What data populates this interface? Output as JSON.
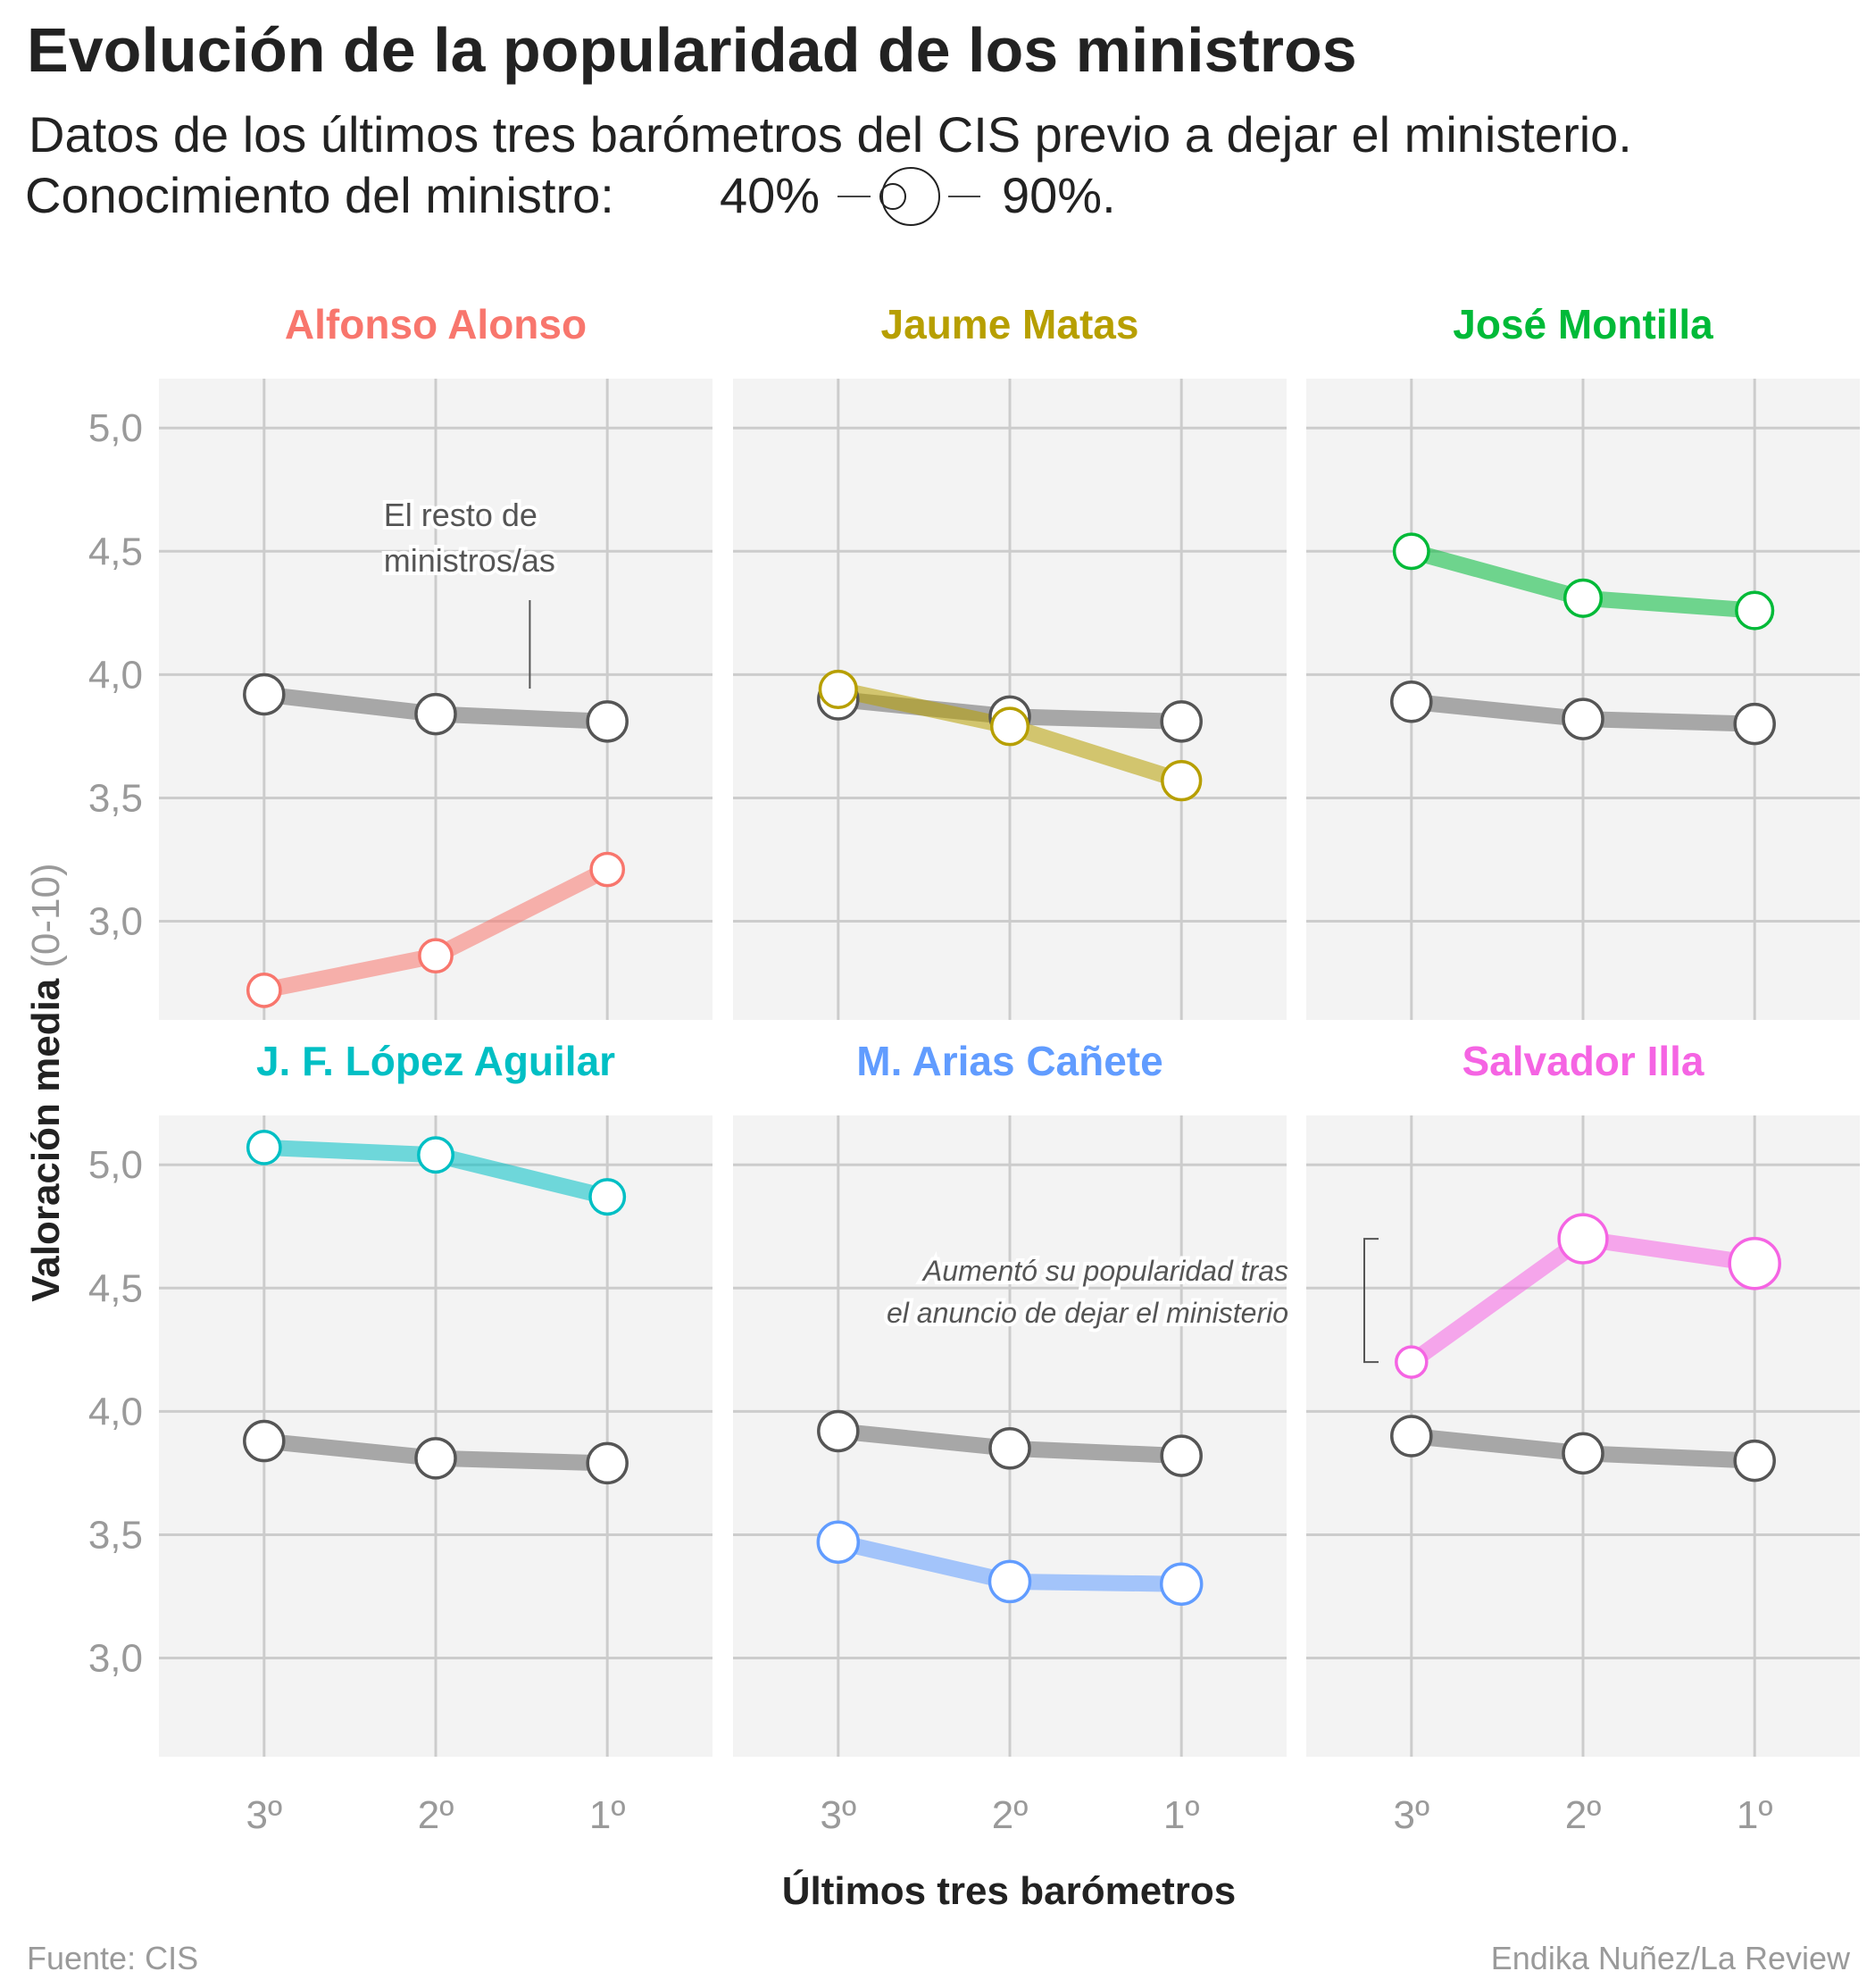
{
  "header": {
    "title": "Evolución de la popularidad de los ministros",
    "subtitle": "Datos de los últimos tres barómetros del CIS previo a dejar el ministerio.",
    "legend_prefix": "Conocimiento del ministro:",
    "legend_min": "40%",
    "legend_max": "90%."
  },
  "footer": {
    "source": "Fuente: CIS",
    "credit": "Endika Nuñez/La Review"
  },
  "chart_data": {
    "type": "line",
    "facets": "small multiples, 2 rows x 3 columns, shared axes",
    "xlabel": "Últimos tres barómetros",
    "ylabel_bold": "Valoración media",
    "ylabel_light": "(0-10)",
    "x": [
      "3º",
      "2º",
      "1º"
    ],
    "y_ticks": [
      "5,0",
      "4,5",
      "4,0",
      "3,5",
      "3,0"
    ],
    "y_tick_values": [
      5.0,
      4.5,
      4.0,
      3.5,
      3.0
    ],
    "ylim": [
      2.6,
      5.2
    ],
    "grid": true,
    "size_legend": {
      "min_pct": 40,
      "max_pct": 90
    },
    "reference_color": "#999999",
    "panels": [
      {
        "name": "Alfonso Alonso",
        "color": "#F8766D",
        "minister": {
          "values": [
            2.72,
            2.86,
            3.21
          ],
          "knowledge_pct": [
            45,
            45,
            45
          ]
        },
        "rest": {
          "values": [
            3.92,
            3.84,
            3.81
          ]
        },
        "annotation": {
          "lines": [
            "El resto de",
            "ministros/as"
          ]
        }
      },
      {
        "name": "Jaume Matas",
        "color": "#B79F00",
        "minister": {
          "values": [
            3.94,
            3.79,
            3.57
          ],
          "knowledge_pct": [
            55,
            55,
            60
          ]
        },
        "rest": {
          "values": [
            3.9,
            3.83,
            3.81
          ]
        }
      },
      {
        "name": "José Montilla",
        "color": "#00BA38",
        "minister": {
          "values": [
            4.5,
            4.31,
            4.26
          ],
          "knowledge_pct": [
            50,
            55,
            55
          ]
        },
        "rest": {
          "values": [
            3.89,
            3.82,
            3.8
          ]
        }
      },
      {
        "name": "J. F. López Aguilar",
        "color": "#00BFC4",
        "minister": {
          "values": [
            5.07,
            5.04,
            4.87
          ],
          "knowledge_pct": [
            45,
            50,
            50
          ]
        },
        "rest": {
          "values": [
            3.88,
            3.81,
            3.79
          ]
        }
      },
      {
        "name": "M. Arias Cañete",
        "color": "#619CFF",
        "minister": {
          "values": [
            3.47,
            3.31,
            3.3
          ],
          "knowledge_pct": [
            65,
            65,
            65
          ]
        },
        "rest": {
          "values": [
            3.92,
            3.85,
            3.82
          ]
        }
      },
      {
        "name": "Salvador Illa",
        "color": "#F564E3",
        "minister": {
          "values": [
            4.2,
            4.7,
            4.6
          ],
          "knowledge_pct": [
            40,
            85,
            90
          ]
        },
        "rest": {
          "values": [
            3.9,
            3.83,
            3.8
          ]
        },
        "annotation": {
          "lines": [
            "Aumentó su popularidad tras",
            "el anuncio de dejar el ministerio"
          ]
        }
      }
    ]
  }
}
